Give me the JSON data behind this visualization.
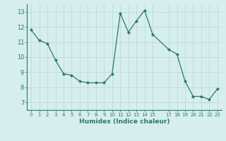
{
  "x": [
    0,
    1,
    2,
    3,
    4,
    5,
    6,
    7,
    8,
    9,
    10,
    11,
    12,
    13,
    14,
    15,
    17,
    18,
    19,
    20,
    21,
    22,
    23
  ],
  "y": [
    11.8,
    11.1,
    10.9,
    9.8,
    8.9,
    8.8,
    8.4,
    8.3,
    8.3,
    8.3,
    8.9,
    12.9,
    11.65,
    12.4,
    13.1,
    11.5,
    10.5,
    10.2,
    8.4,
    7.4,
    7.4,
    7.2,
    7.9
  ],
  "xlabel": "Humidex (Indice chaleur)",
  "ylim": [
    6.5,
    13.5
  ],
  "xlim": [
    -0.5,
    23.5
  ],
  "yticks": [
    7,
    8,
    9,
    10,
    11,
    12,
    13
  ],
  "xticks": [
    0,
    1,
    2,
    3,
    4,
    5,
    6,
    7,
    8,
    9,
    10,
    11,
    12,
    13,
    14,
    15,
    17,
    18,
    19,
    20,
    21,
    22,
    23
  ],
  "xtick_labels": [
    "0",
    "1",
    "2",
    "3",
    "4",
    "5",
    "6",
    "7",
    "8",
    "9",
    "10",
    "11",
    "12",
    "13",
    "14",
    "15",
    "17",
    "18",
    "19",
    "20",
    "21",
    "22",
    "23"
  ],
  "line_color": "#2a7a6e",
  "marker_color": "#2a7a6e",
  "bg_color": "#d6eeed",
  "grid_color": "#b8d8d5",
  "tick_color": "#2a7a6e"
}
